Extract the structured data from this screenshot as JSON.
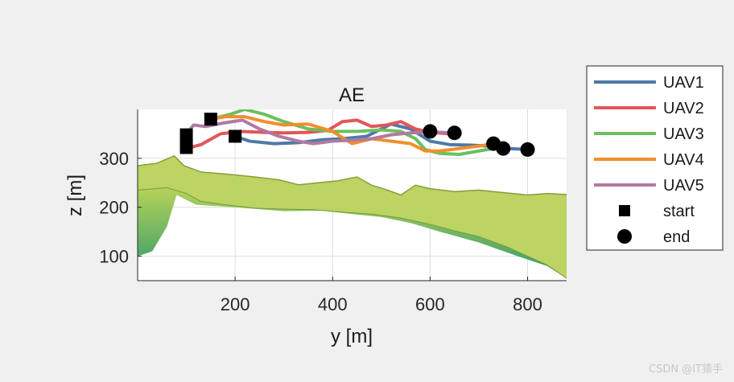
{
  "watermark": "CSDN @IT猿手",
  "chart_data": {
    "type": "line",
    "title": "AE",
    "xlabel": "y [m]",
    "ylabel": "z [m]",
    "xlim": [
      0,
      880
    ],
    "ylim": [
      50,
      400
    ],
    "xticks": [
      200,
      400,
      600,
      800
    ],
    "yticks": [
      100,
      200,
      300
    ],
    "grid": true,
    "legend_position": "outside-right",
    "legend": [
      "UAV1",
      "UAV2",
      "UAV3",
      "UAV4",
      "UAV5",
      "start",
      "end"
    ],
    "colors": {
      "UAV1": "#4e79a7",
      "UAV2": "#e15759",
      "UAV3": "#6bbf5f",
      "UAV4": "#f28e2b",
      "UAV5": "#b07aa1",
      "marker": "#000000",
      "terrain_top": "#b7d25a",
      "terrain_bottom": "#2f9a6a"
    },
    "series": [
      {
        "name": "UAV1",
        "x": [
          200,
          230,
          280,
          330,
          380,
          420,
          470,
          520,
          560,
          600,
          640,
          680,
          720,
          760,
          800
        ],
        "y": [
          345,
          335,
          330,
          332,
          338,
          340,
          345,
          370,
          360,
          335,
          328,
          327,
          325,
          320,
          318
        ]
      },
      {
        "name": "UAV2",
        "x": [
          100,
          130,
          170,
          210,
          260,
          300,
          350,
          390,
          420,
          450,
          480,
          510,
          540,
          570,
          600,
          640
        ],
        "y": [
          320,
          328,
          350,
          355,
          353,
          352,
          353,
          357,
          375,
          378,
          365,
          368,
          375,
          360,
          353,
          350
        ]
      },
      {
        "name": "UAV3",
        "x": [
          150,
          190,
          220,
          260,
          300,
          350,
          400,
          450,
          500,
          540,
          570,
          590,
          620,
          660,
          700,
          730
        ],
        "y": [
          380,
          390,
          400,
          390,
          375,
          360,
          355,
          355,
          358,
          355,
          340,
          318,
          310,
          308,
          315,
          320
        ]
      },
      {
        "name": "UAV4",
        "x": [
          150,
          180,
          220,
          260,
          300,
          350,
          400,
          440,
          480,
          520,
          560,
          590,
          620,
          660,
          700,
          730
        ],
        "y": [
          380,
          385,
          385,
          375,
          368,
          370,
          355,
          330,
          340,
          335,
          330,
          315,
          315,
          320,
          325,
          330
        ]
      },
      {
        "name": "UAV5",
        "x": [
          100,
          115,
          140,
          175,
          215,
          250,
          290,
          330,
          360,
          400,
          440,
          480,
          520,
          560,
          600,
          650
        ],
        "y": [
          350,
          368,
          365,
          372,
          378,
          360,
          345,
          335,
          330,
          335,
          337,
          340,
          348,
          352,
          354,
          352
        ]
      }
    ],
    "start_points": [
      [
        100,
        348
      ],
      [
        100,
        322
      ],
      [
        150,
        380
      ],
      [
        200,
        345
      ]
    ],
    "end_points": [
      [
        600,
        355
      ],
      [
        650,
        352
      ],
      [
        730,
        330
      ],
      [
        750,
        320
      ],
      [
        800,
        318
      ]
    ],
    "terrain_top": [
      [
        0,
        285
      ],
      [
        40,
        290
      ],
      [
        75,
        305
      ],
      [
        95,
        285
      ],
      [
        130,
        272
      ],
      [
        180,
        268
      ],
      [
        240,
        262
      ],
      [
        290,
        256
      ],
      [
        330,
        246
      ],
      [
        370,
        250
      ],
      [
        410,
        254
      ],
      [
        450,
        262
      ],
      [
        480,
        245
      ],
      [
        510,
        236
      ],
      [
        540,
        225
      ],
      [
        570,
        245
      ],
      [
        600,
        238
      ],
      [
        650,
        232
      ],
      [
        700,
        235
      ],
      [
        750,
        230
      ],
      [
        800,
        225
      ],
      [
        840,
        228
      ],
      [
        880,
        226
      ]
    ],
    "terrain_edge": [
      [
        0,
        235
      ],
      [
        60,
        240
      ],
      [
        100,
        228
      ],
      [
        130,
        212
      ],
      [
        180,
        205
      ],
      [
        240,
        198
      ],
      [
        300,
        196
      ],
      [
        360,
        195
      ],
      [
        420,
        190
      ],
      [
        480,
        186
      ],
      [
        540,
        178
      ],
      [
        600,
        165
      ],
      [
        650,
        152
      ],
      [
        700,
        140
      ],
      [
        760,
        118
      ],
      [
        800,
        100
      ],
      [
        840,
        82
      ],
      [
        880,
        55
      ]
    ],
    "terrain_base": [
      [
        0,
        100
      ],
      [
        30,
        110
      ],
      [
        60,
        160
      ],
      [
        80,
        225
      ],
      [
        120,
        205
      ],
      [
        200,
        200
      ],
      [
        300,
        192
      ],
      [
        380,
        193
      ],
      [
        440,
        186
      ],
      [
        500,
        180
      ],
      [
        560,
        168
      ],
      [
        620,
        150
      ],
      [
        700,
        128
      ],
      [
        780,
        100
      ],
      [
        840,
        80
      ],
      [
        880,
        55
      ]
    ]
  }
}
